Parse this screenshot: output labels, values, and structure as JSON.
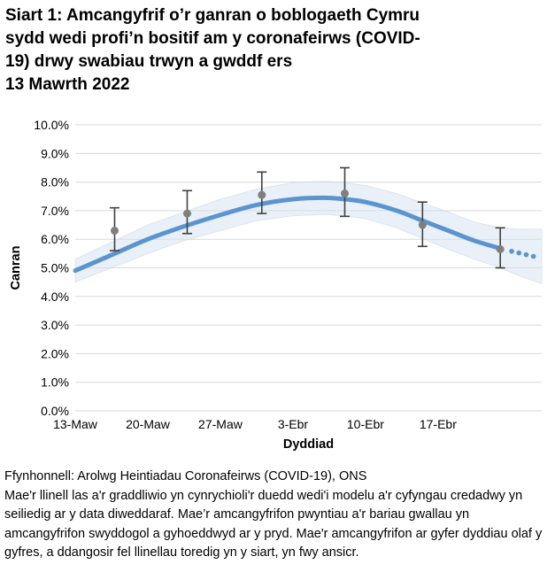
{
  "title": {
    "lines": [
      "Siart 1: Amcangyfrif o’r ganran o boblogaeth Cymru",
      "sydd wedi profi’n bositif am y coronafeirws (COVID-",
      "19) drwy swabiau trwyn a gwddf ers",
      "13 Mawrth 2022"
    ]
  },
  "footer": {
    "source": "Ffynhonnell: Arolwg Heintiadau Coronafeirws (COVID-19), ONS",
    "note": "Mae'r llinell las a'r graddliwio yn cynrychioli'r duedd wedi'i modelu a'r cyfyngau credadwy yn seiliedig ar y data diweddaraf. Mae’r amcangyfrifon pwyntiau a'r bariau gwallau yn amcangyfrifon swyddogol a gyhoeddwyd ar y pryd. Mae'r amcangyfrifon ar gyfer dyddiau olaf y gyfres, a ddangosir fel llinellau toredig yn y siart, yn fwy ansicr."
  },
  "chart_data": {
    "type": "line",
    "xlabel": "Dyddiad",
    "ylabel": "Canran",
    "ylim": [
      0,
      10
    ],
    "x_domain_days": [
      0,
      45
    ],
    "grid": "horizontal",
    "legend": "none",
    "y_ticks": [
      {
        "value": 0,
        "label": "0.0%"
      },
      {
        "value": 1,
        "label": "1.0%"
      },
      {
        "value": 2,
        "label": "2.0%"
      },
      {
        "value": 3,
        "label": "3.0%"
      },
      {
        "value": 4,
        "label": "4.0%"
      },
      {
        "value": 5,
        "label": "5.0%"
      },
      {
        "value": 6,
        "label": "6.0%"
      },
      {
        "value": 7,
        "label": "7.0%"
      },
      {
        "value": 8,
        "label": "8.0%"
      },
      {
        "value": 9,
        "label": "9.0%"
      },
      {
        "value": 10,
        "label": "10.0%"
      }
    ],
    "x_ticks": [
      {
        "day": 0,
        "label": "13-Maw"
      },
      {
        "day": 7,
        "label": "20-Maw"
      },
      {
        "day": 14,
        "label": "27-Maw"
      },
      {
        "day": 21,
        "label": "3-Ebr"
      },
      {
        "day": 28,
        "label": "10-Ebr"
      },
      {
        "day": 35,
        "label": "17-Ebr"
      }
    ],
    "modelled_trend_solid": {
      "days": [
        0,
        3.5,
        7,
        10.5,
        14,
        17.5,
        21,
        24,
        26,
        28,
        31,
        33.5,
        36,
        38.5,
        41
      ],
      "values": [
        4.9,
        5.45,
        6.0,
        6.45,
        6.85,
        7.2,
        7.4,
        7.45,
        7.4,
        7.3,
        7.0,
        6.65,
        6.3,
        5.95,
        5.68
      ]
    },
    "modelled_trend_dotted_points": {
      "days": [
        42.1,
        42.8,
        43.5,
        44.2
      ],
      "values": [
        5.58,
        5.52,
        5.46,
        5.4
      ]
    },
    "credible_band": {
      "days": [
        0,
        3.5,
        7,
        10.5,
        14,
        17.5,
        21,
        24,
        26,
        28,
        31,
        33.5,
        36,
        38.5,
        41,
        43,
        45
      ],
      "high": [
        5.3,
        5.9,
        6.5,
        6.95,
        7.4,
        7.75,
        7.98,
        8.03,
        7.98,
        7.88,
        7.6,
        7.27,
        6.95,
        6.6,
        6.4,
        6.35,
        6.35
      ],
      "low": [
        4.5,
        5.0,
        5.5,
        5.95,
        6.3,
        6.65,
        6.82,
        6.87,
        6.82,
        6.72,
        6.4,
        6.03,
        5.65,
        5.3,
        5.0,
        4.7,
        4.45
      ]
    },
    "point_estimates": {
      "labels": [
        "17-Maw",
        "24-Maw",
        "31-Maw",
        "8-Ebr",
        "15-Ebr",
        "23-Ebr"
      ],
      "days": [
        3.8,
        10.8,
        18.0,
        26.0,
        33.5,
        41.0
      ],
      "values": [
        6.3,
        6.9,
        7.55,
        7.6,
        6.5,
        5.65
      ],
      "ci_low": [
        5.6,
        6.2,
        6.9,
        6.8,
        5.75,
        5.0
      ],
      "ci_high": [
        7.1,
        7.7,
        8.35,
        8.5,
        7.3,
        6.4
      ]
    },
    "colors": {
      "trend_line": "#5b94ce",
      "band_fill": "#d3e1f1",
      "band_edge": "#c7d7ea",
      "point_marker": "#7f7f7f",
      "error_bar": "#404040",
      "gridline": "#d9d9d9",
      "axis_text": "#000000"
    }
  }
}
